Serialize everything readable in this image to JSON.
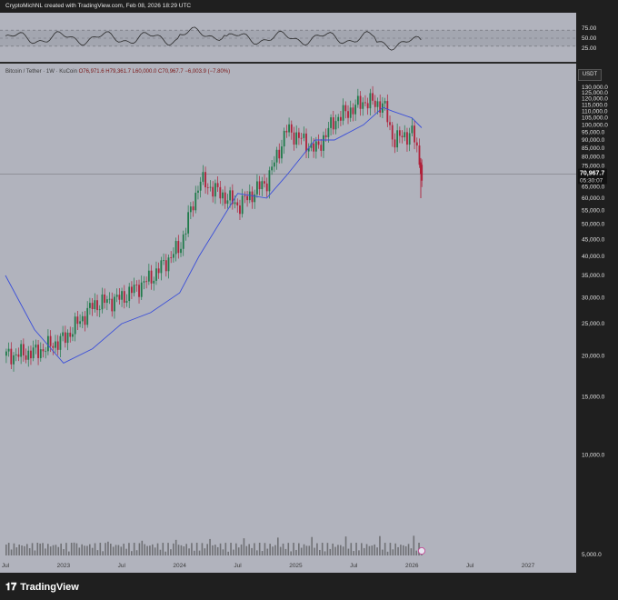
{
  "header": {
    "credit": "CryptoMichNL created with TradingView.com, Feb 08, 2026 18:29 UTC"
  },
  "legend": {
    "symbol": "Bitcoin / Tether · 1W · KuCoin",
    "open": "O76,971.6",
    "high": "H79,361.7",
    "low": "L60,000.0",
    "close": "C70,967.7",
    "change": "−6,003.9 (−7.80%)"
  },
  "currency_button": "USDT",
  "price_tag": {
    "price": "70,967.7",
    "countdown": "05:30:07"
  },
  "rsi_axis": [
    "75.00",
    "50.00",
    "25.00"
  ],
  "price_axis": [
    "130,000.0",
    "125,000.0",
    "120,000.0",
    "115,000.0",
    "110,000.0",
    "105,000.0",
    "100,000.0",
    "95,000.0",
    "90,000.0",
    "85,000.0",
    "80,000.0",
    "75,000.0",
    "65,000.0",
    "60,000.0",
    "55,000.0",
    "50,000.0",
    "45,000.0",
    "40,000.0",
    "35,000.0",
    "30,000.0",
    "25,000.0",
    "20,000.0",
    "15,000.0",
    "10,000.0",
    "5,000.0"
  ],
  "time_axis": [
    "Jul",
    "2023",
    "Jul",
    "2024",
    "Jul",
    "2025",
    "Jul",
    "2026",
    "Jul",
    "2027"
  ],
  "brand": "TradingView",
  "colors": {
    "up": "#1f7a4a",
    "down": "#b0213a",
    "ma": "#3b4fd9",
    "rsi": "#2a2a2a"
  },
  "chart_data": {
    "type": "candlestick",
    "title": "Bitcoin / Tether · 1W · KuCoin",
    "y_scale": "log",
    "ylim": [
      5000,
      135000
    ],
    "series": [
      {
        "name": "price",
        "x": [
          "2022-07",
          "2022-10",
          "2023-01",
          "2023-04",
          "2023-07",
          "2023-10",
          "2024-01",
          "2024-03",
          "2024-07",
          "2024-10",
          "2024-12",
          "2025-03",
          "2025-05",
          "2025-08",
          "2025-10",
          "2025-11",
          "2026-01",
          "2026-02"
        ],
        "values": [
          20000,
          20500,
          22500,
          28500,
          30000,
          34500,
          43000,
          68000,
          57000,
          68000,
          97000,
          84000,
          104000,
          118000,
          115000,
          90000,
          95000,
          70967.7
        ]
      },
      {
        "name": "ma",
        "x": [
          "2022-07",
          "2022-10",
          "2023-01",
          "2023-04",
          "2023-07",
          "2023-10",
          "2024-01",
          "2024-03",
          "2024-07",
          "2024-10",
          "2024-12",
          "2025-03",
          "2025-05",
          "2025-08",
          "2025-10",
          "2025-11",
          "2026-01",
          "2026-02"
        ],
        "values": [
          35000,
          24000,
          19000,
          21000,
          25000,
          27000,
          31000,
          40000,
          62000,
          60000,
          70000,
          90000,
          90000,
          100000,
          113000,
          110000,
          105000,
          98000
        ]
      }
    ],
    "rsi": {
      "range": [
        0,
        100
      ],
      "levels": [
        70,
        50,
        30
      ]
    }
  }
}
